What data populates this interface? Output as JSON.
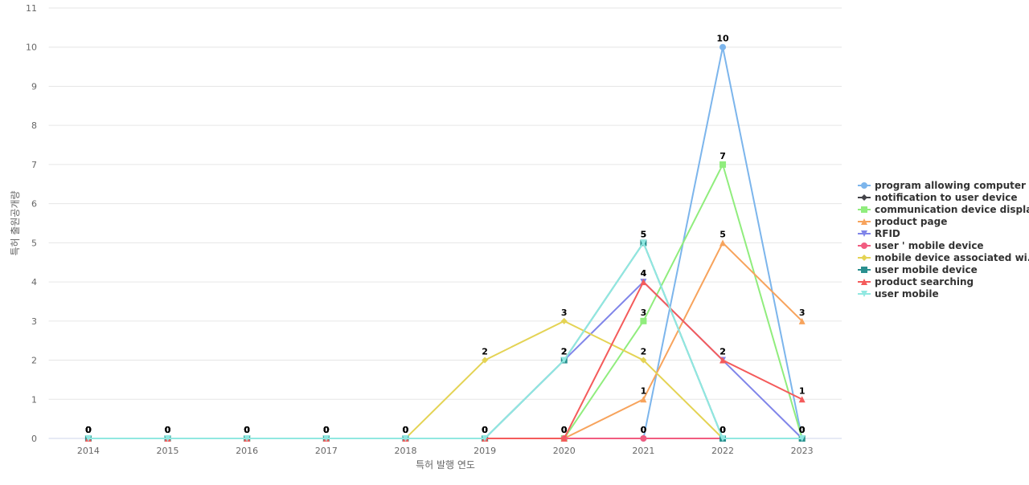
{
  "chart_data": {
    "type": "line",
    "x_label": "특허 발행 연도",
    "y_label": "특허 출원공개량",
    "categories": [
      "2014",
      "2015",
      "2016",
      "2017",
      "2018",
      "2019",
      "2020",
      "2021",
      "2022",
      "2023"
    ],
    "ylim": [
      0,
      11
    ],
    "yticks": [
      0,
      1,
      2,
      3,
      4,
      5,
      6,
      7,
      8,
      9,
      10,
      11
    ],
    "grid": true,
    "legend": "right",
    "series": [
      {
        "name": "program allowing computer",
        "color": "#7cb5ec",
        "marker": "circle",
        "values": [
          0,
          0,
          0,
          0,
          0,
          0,
          0,
          0,
          10,
          0
        ]
      },
      {
        "name": "notification to user device",
        "color": "#434348",
        "marker": "diamond",
        "values": [
          0,
          0,
          0,
          0,
          0,
          0,
          0,
          0,
          0,
          0
        ]
      },
      {
        "name": "communication device display",
        "color": "#90ed7d",
        "marker": "square",
        "values": [
          0,
          0,
          0,
          0,
          0,
          0,
          0,
          3,
          7,
          0
        ]
      },
      {
        "name": "product page",
        "color": "#f7a35c",
        "marker": "triangle",
        "values": [
          0,
          0,
          0,
          0,
          0,
          0,
          0,
          1,
          5,
          3
        ]
      },
      {
        "name": "RFID",
        "color": "#8085e9",
        "marker": "triangle-down",
        "values": [
          0,
          0,
          0,
          0,
          0,
          0,
          2,
          4,
          2,
          0
        ]
      },
      {
        "name": "user ' mobile device",
        "color": "#f15c80",
        "marker": "circle",
        "values": [
          0,
          0,
          0,
          0,
          0,
          0,
          0,
          0,
          0,
          0
        ]
      },
      {
        "name": "mobile device associated wi...",
        "color": "#e4d354",
        "marker": "diamond",
        "values": [
          0,
          0,
          0,
          0,
          0,
          2,
          3,
          2,
          0,
          0
        ]
      },
      {
        "name": "user mobile device",
        "color": "#2b908f",
        "marker": "square",
        "values": [
          0,
          0,
          0,
          0,
          0,
          0,
          2,
          5,
          0,
          0
        ]
      },
      {
        "name": "product searching",
        "color": "#f45b5b",
        "marker": "triangle",
        "values": [
          0,
          0,
          0,
          0,
          0,
          0,
          0,
          4,
          2,
          1
        ]
      },
      {
        "name": "user mobile",
        "color": "#91e8e1",
        "marker": "triangle-down",
        "values": [
          0,
          0,
          0,
          0,
          0,
          0,
          2,
          5,
          0,
          0
        ]
      }
    ]
  }
}
